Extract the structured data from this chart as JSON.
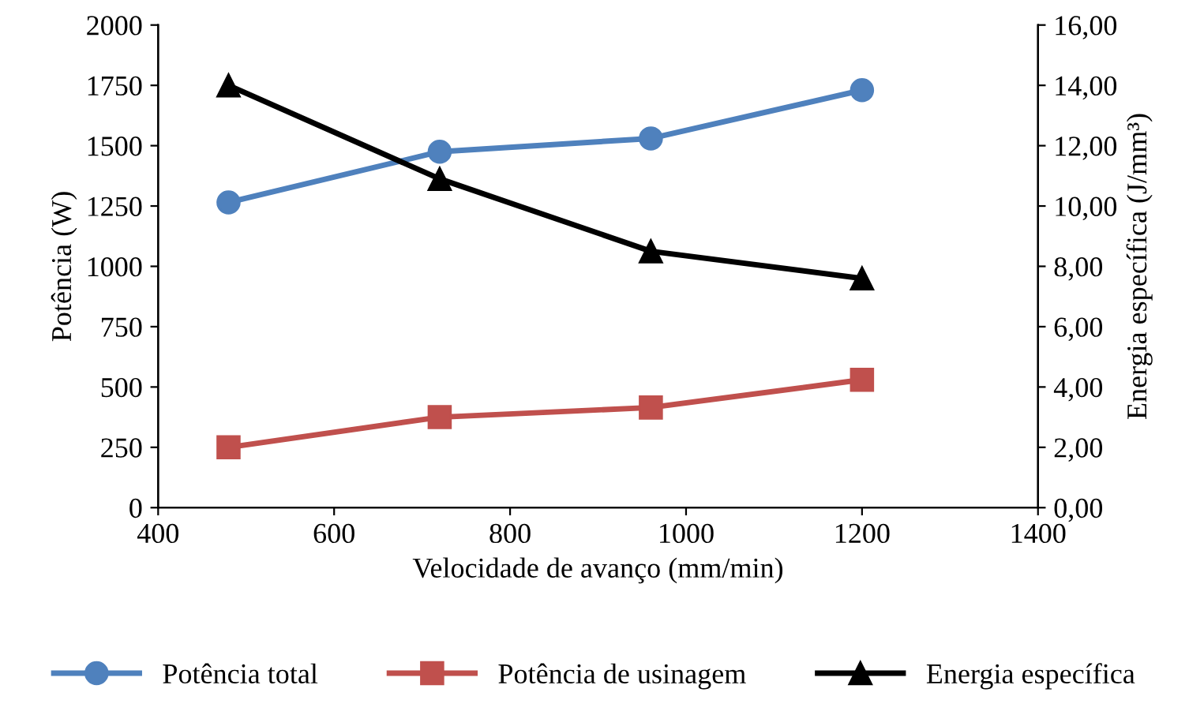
{
  "chart_data": {
    "type": "line",
    "xlabel": "Velocidade de avanço (mm/min)",
    "ylabel": "Potência (W)",
    "y2label": "Energia específica (J/mm³)",
    "x": [
      480,
      720,
      960,
      1200
    ],
    "series": [
      {
        "name": "Potência total",
        "color": "#4f81bd",
        "values": [
          1265,
          1475,
          1530,
          1730
        ],
        "marker": "circle"
      },
      {
        "name": "Potência de usinagem",
        "color": "#c0504d",
        "values": [
          250,
          375,
          415,
          530
        ],
        "marker": "square"
      },
      {
        "name": "Energia específica",
        "color": "#000000",
        "values": [
          14.0,
          10.9,
          8.5,
          7.6
        ],
        "marker": "triangle",
        "axis": "y2"
      }
    ],
    "xlim": [
      400,
      1400
    ],
    "xticks": [
      400,
      600,
      800,
      1000,
      1200,
      1400
    ],
    "ylim": [
      0,
      2000
    ],
    "yticks": [
      0,
      250,
      500,
      750,
      1000,
      1250,
      1500,
      1750,
      2000
    ],
    "y2lim": [
      0,
      16
    ],
    "y2ticks": [
      {
        "value": 0,
        "label": "0,00"
      },
      {
        "value": 2,
        "label": "2,00"
      },
      {
        "value": 4,
        "label": "4,00"
      },
      {
        "value": 6,
        "label": "6,00"
      },
      {
        "value": 8,
        "label": "8,00"
      },
      {
        "value": 10,
        "label": "10,00"
      },
      {
        "value": 12,
        "label": "12,00"
      },
      {
        "value": 14,
        "label": "14,00"
      },
      {
        "value": 16,
        "label": "16,00"
      }
    ],
    "grid": false,
    "legend": "bottom",
    "line_style": "solid"
  }
}
